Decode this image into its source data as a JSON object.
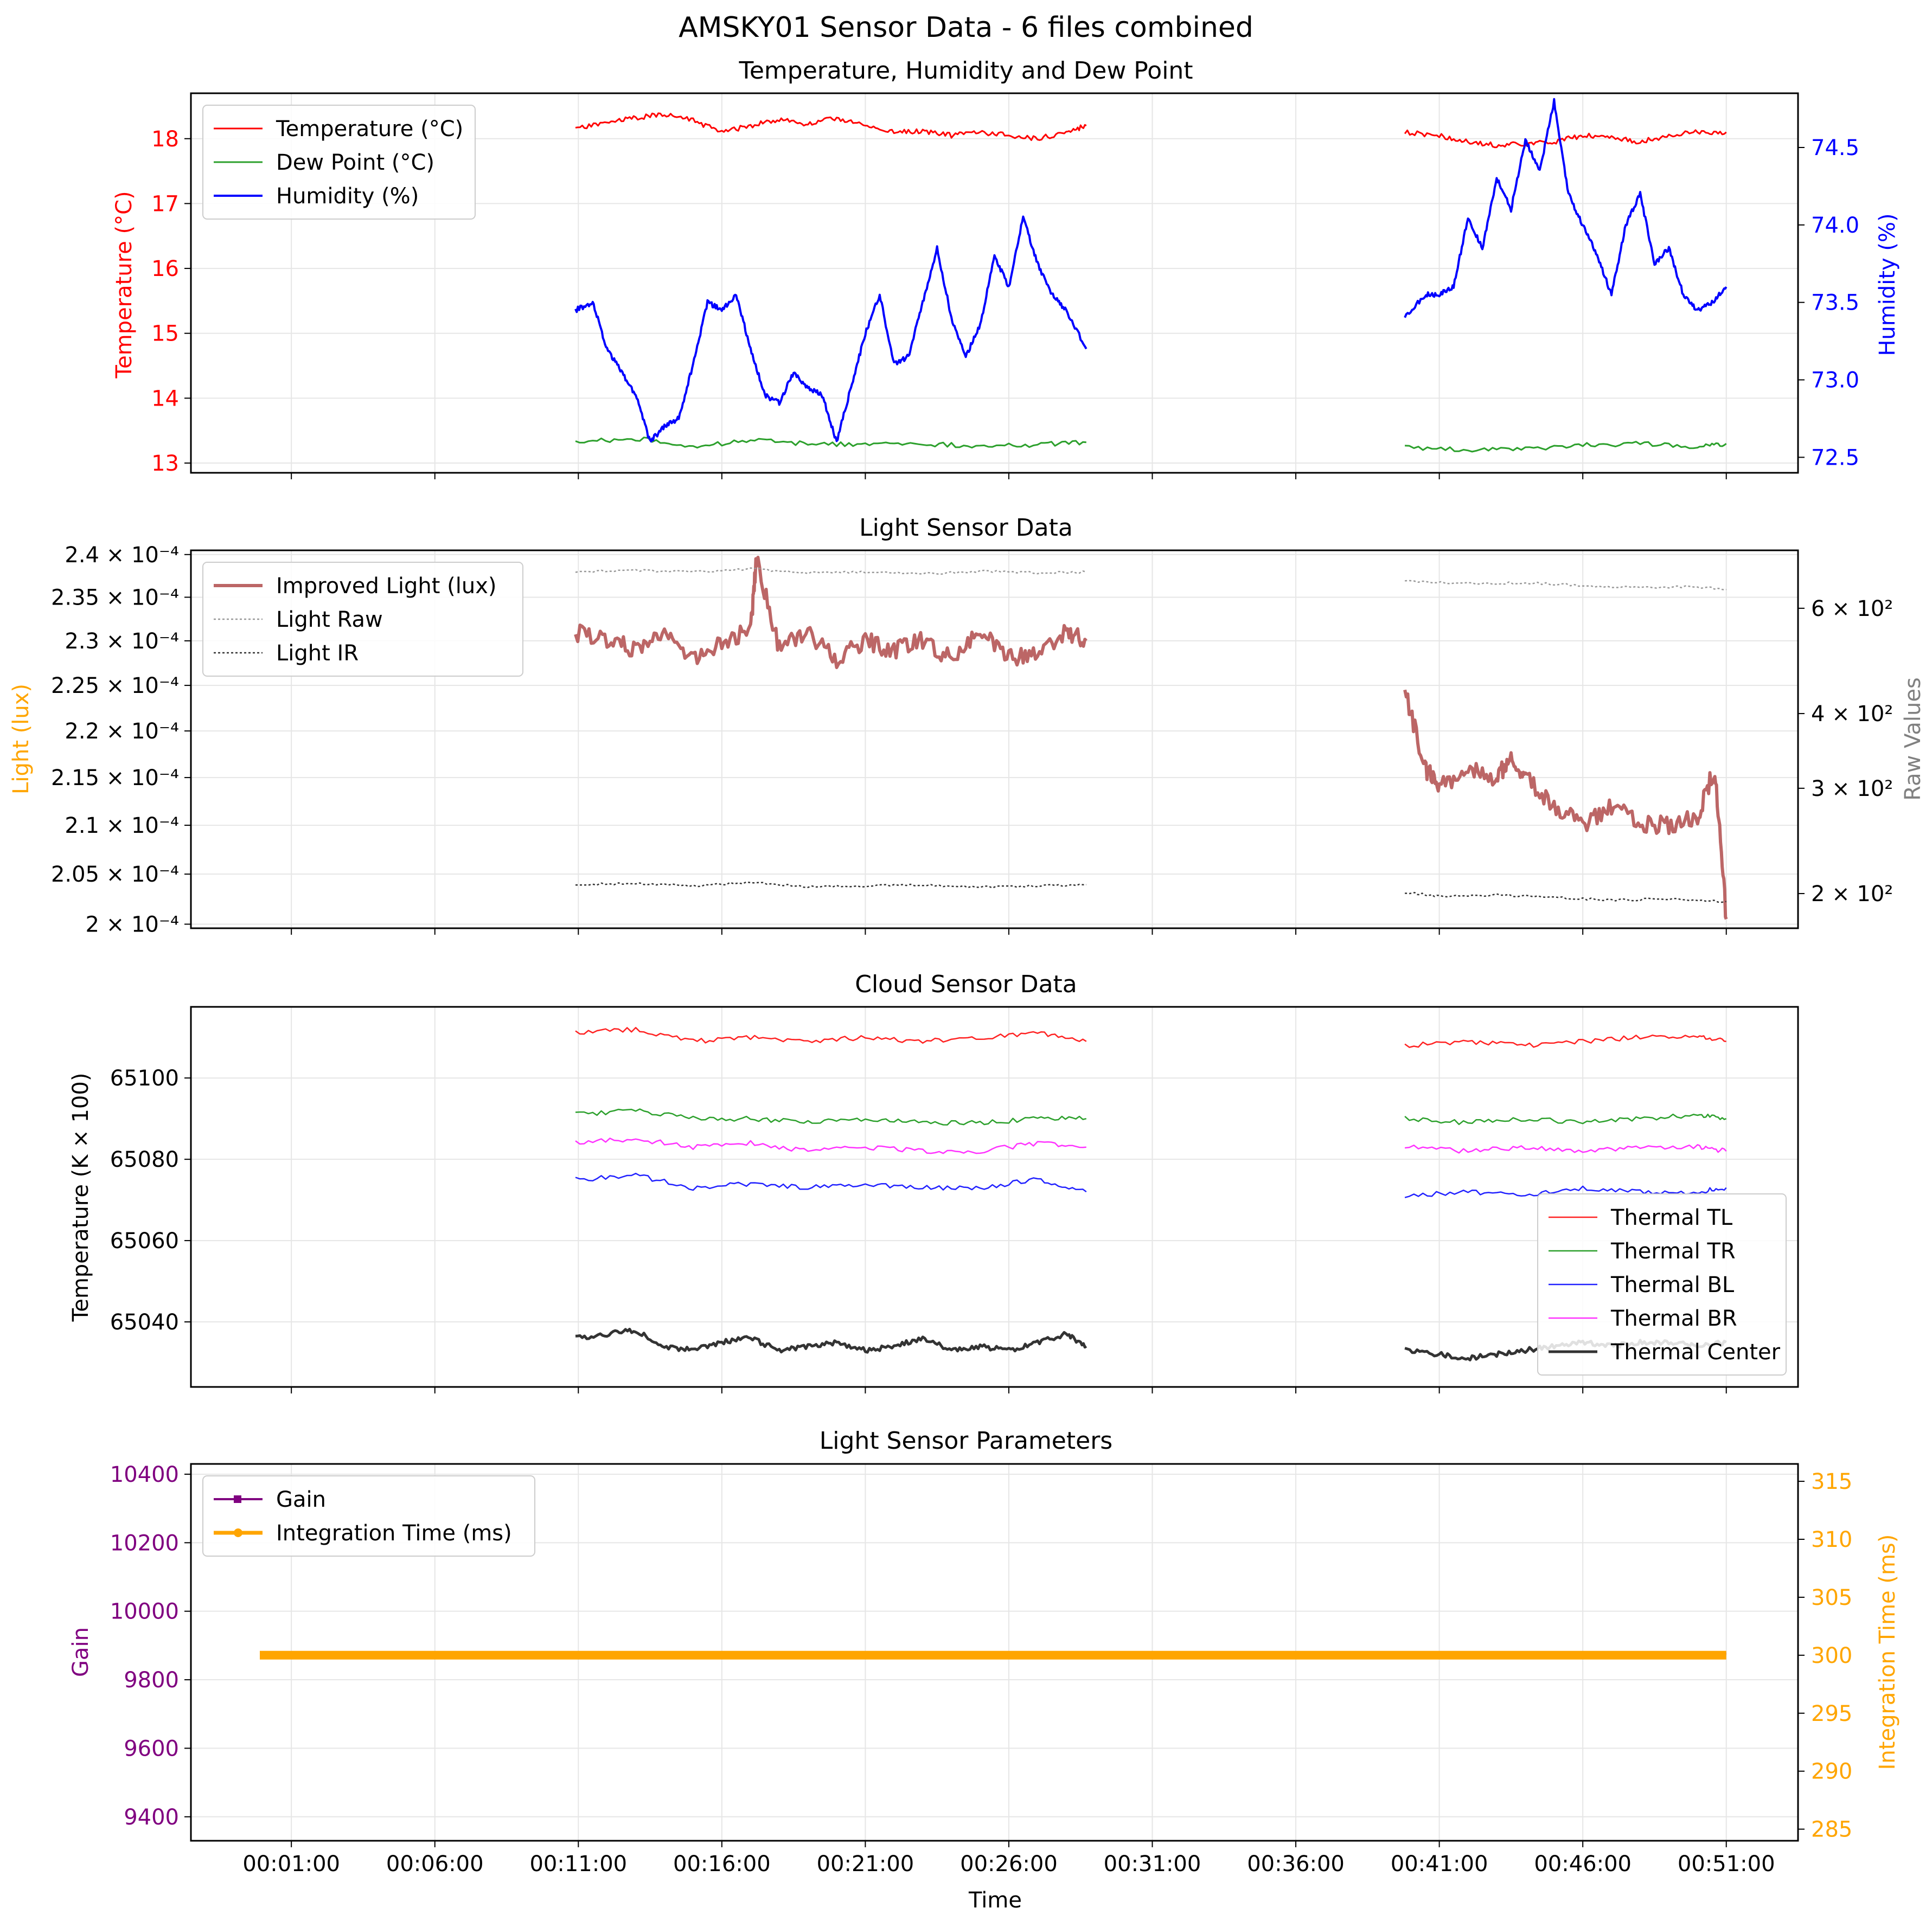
{
  "figure": {
    "title": "AMSKY01 Sensor Data - 6 files combined",
    "xlabel": "Time",
    "x_ticks": [
      "00:01:00",
      "00:06:00",
      "00:11:00",
      "00:16:00",
      "00:21:00",
      "00:26:00",
      "00:31:00",
      "00:36:00",
      "00:41:00",
      "00:46:00",
      "00:51:00"
    ],
    "x_tick_minutes": [
      1,
      6,
      11,
      16,
      21,
      26,
      31,
      36,
      41,
      46,
      51
    ],
    "xlim_minutes": [
      -2.5,
      53.5
    ],
    "segments_minutes": [
      [
        10.9,
        28.7
      ],
      [
        39.8,
        51.0
      ]
    ]
  },
  "chart_data": [
    {
      "type": "line",
      "title": "Temperature, Humidity and Dew Point",
      "ylabel": "Temperature (°C)",
      "ylabel_right": "Humidity (%)",
      "ylim": [
        12.85,
        18.7
      ],
      "ylim_right": [
        72.4,
        74.85
      ],
      "y_ticks": [
        13,
        14,
        15,
        16,
        17,
        18
      ],
      "y_tick_labels": [
        "13",
        "14",
        "15",
        "16",
        "17",
        "18"
      ],
      "y_ticks_right": [
        72.5,
        73.0,
        73.5,
        74.0,
        74.5
      ],
      "y_tick_labels_right": [
        "72.5",
        "73.0",
        "73.5",
        "74.0",
        "74.5"
      ],
      "legend": "top-left",
      "grid": true,
      "series": [
        {
          "name": "Temperature (°C)",
          "axis": "left",
          "color": "#ff0000",
          "width": 3,
          "x": [
            10.9,
            12,
            13,
            14,
            15,
            16,
            17,
            18,
            19,
            20,
            21,
            22,
            23,
            24,
            25,
            26,
            27,
            28,
            28.7
          ],
          "y": [
            18.15,
            18.25,
            18.32,
            18.38,
            18.28,
            18.1,
            18.2,
            18.3,
            18.22,
            18.32,
            18.2,
            18.1,
            18.12,
            18.05,
            18.1,
            18.05,
            18.0,
            18.1,
            18.2
          ],
          "x2": [
            39.8,
            41,
            42,
            43,
            44,
            45,
            46,
            47,
            48,
            49,
            50,
            51
          ],
          "y2": [
            18.1,
            18.05,
            17.95,
            17.9,
            17.92,
            17.95,
            18.05,
            18.02,
            17.95,
            18.05,
            18.1,
            18.1
          ]
        },
        {
          "name": "Dew Point (°C)",
          "axis": "left",
          "color": "#2ca02c",
          "width": 3,
          "x": [
            10.9,
            13,
            15,
            17,
            19,
            21,
            23,
            25,
            27,
            28.7
          ],
          "y": [
            13.32,
            13.38,
            13.25,
            13.35,
            13.3,
            13.28,
            13.3,
            13.25,
            13.28,
            13.32
          ],
          "x2": [
            39.8,
            42,
            44,
            46,
            48,
            50,
            51
          ],
          "y2": [
            13.25,
            13.2,
            13.22,
            13.28,
            13.3,
            13.25,
            13.3
          ]
        },
        {
          "name": "Humidity (%)",
          "axis": "right",
          "color": "#0000ff",
          "width": 4,
          "x": [
            10.9,
            11.5,
            12,
            12.5,
            13,
            13.5,
            14,
            14.5,
            15,
            15.5,
            16,
            16.5,
            17,
            17.5,
            18,
            18.5,
            19,
            19.5,
            20,
            20.5,
            21,
            21.5,
            22,
            22.5,
            23,
            23.5,
            24,
            24.5,
            25,
            25.5,
            26,
            26.5,
            27,
            27.5,
            28,
            28.7
          ],
          "y": [
            73.45,
            73.5,
            73.2,
            73.05,
            72.9,
            72.6,
            72.7,
            72.75,
            73.1,
            73.5,
            73.45,
            73.55,
            73.2,
            72.9,
            72.85,
            73.05,
            72.95,
            72.9,
            72.6,
            72.95,
            73.3,
            73.55,
            73.1,
            73.15,
            73.5,
            73.85,
            73.4,
            73.15,
            73.35,
            73.8,
            73.6,
            74.05,
            73.75,
            73.55,
            73.45,
            73.2
          ],
          "x2": [
            39.8,
            40.5,
            41,
            41.5,
            42,
            42.5,
            43,
            43.5,
            44,
            44.5,
            45,
            45.5,
            46,
            46.5,
            47,
            47.5,
            48,
            48.5,
            49,
            49.5,
            50,
            50.5,
            51
          ],
          "y2": [
            73.4,
            73.55,
            73.55,
            73.6,
            74.05,
            73.85,
            74.3,
            74.1,
            74.55,
            74.35,
            74.8,
            74.2,
            74.0,
            73.8,
            73.55,
            74.0,
            74.2,
            73.75,
            73.85,
            73.55,
            73.45,
            73.5,
            73.6
          ]
        }
      ]
    },
    {
      "type": "line",
      "title": "Light Sensor Data",
      "ylabel": "Light (lux)",
      "ylabel_right": "Raw Values",
      "y_scale": "log",
      "ylim": [
        0.0001996,
        0.0002405
      ],
      "ylim_right": [
        175,
        750
      ],
      "y_ticks": [
        0.0002,
        0.000205,
        0.00021,
        0.000215,
        0.00022,
        0.000225,
        0.00023,
        0.000235,
        0.00024
      ],
      "y_tick_labels": [
        "2 × 10⁻⁴",
        "2.05 × 10⁻⁴",
        "2.1 × 10⁻⁴",
        "2.15 × 10⁻⁴",
        "2.2 × 10⁻⁴",
        "2.25 × 10⁻⁴",
        "2.3 × 10⁻⁴",
        "2.35 × 10⁻⁴",
        "2.4 × 10⁻⁴"
      ],
      "y_ticks_right": [
        200,
        300,
        400,
        600
      ],
      "y_tick_labels_right": [
        "2 × 10²",
        "3 × 10²",
        "4 × 10²",
        "6 × 10²"
      ],
      "legend": "top-left",
      "grid": true,
      "series": [
        {
          "name": "Improved Light (lux)",
          "axis": "left",
          "color": "#bc6666",
          "width": 6,
          "x": [
            10.9,
            12,
            13,
            14,
            15,
            16,
            17,
            17.2,
            18,
            19,
            20,
            21,
            22,
            23,
            24,
            25,
            26,
            27,
            28,
            28.7
          ],
          "y": [
            0.000231,
            0.00023,
            0.000229,
            0.000231,
            0.000228,
            0.00023,
            0.000231,
            0.0002395,
            0.000229,
            0.000231,
            0.000228,
            0.00023,
            0.000229,
            0.00023,
            0.000228,
            0.000231,
            0.000228,
            0.000229,
            0.000231,
            0.00023
          ],
          "x2": [
            39.8,
            40.5,
            41,
            42,
            43,
            43.5,
            44,
            45,
            46,
            47,
            48,
            49,
            50,
            50.6,
            51
          ],
          "y2": [
            0.0002245,
            0.000216,
            0.000214,
            0.000216,
            0.000215,
            0.000217,
            0.000215,
            0.000212,
            0.00021,
            0.000212,
            0.00021,
            0.00021,
            0.000211,
            0.000216,
            0.0002005
          ]
        },
        {
          "name": "Light Raw",
          "axis": "right",
          "color": "#999999",
          "width": 2.5,
          "dash": "4,4",
          "x": [
            10.9,
            13,
            15,
            17,
            19,
            21,
            23,
            25,
            27,
            28.7
          ],
          "y": [
            690,
            695,
            690,
            698,
            688,
            690,
            685,
            692,
            688,
            690
          ],
          "x2": [
            39.8,
            42,
            44,
            46,
            48,
            50,
            51
          ],
          "y2": [
            665,
            660,
            662,
            655,
            650,
            652,
            645
          ]
        },
        {
          "name": "Light IR",
          "axis": "right",
          "color": "#333333",
          "width": 2.5,
          "dash": "4,4",
          "x": [
            10.9,
            13,
            15,
            17,
            19,
            21,
            23,
            25,
            27,
            28.7
          ],
          "y": [
            207,
            208,
            206,
            209,
            205,
            206,
            207,
            205,
            206,
            207
          ],
          "x2": [
            39.8,
            41,
            43,
            45,
            47,
            49,
            51
          ],
          "y2": [
            201,
            198,
            199,
            197,
            195,
            196,
            194
          ]
        }
      ]
    },
    {
      "type": "line",
      "title": "Cloud Sensor Data",
      "ylabel": "Temperature (K × 100)",
      "ylim": [
        65024,
        65117.5
      ],
      "y_ticks": [
        65040,
        65060,
        65080,
        65100
      ],
      "y_tick_labels": [
        "65040",
        "65060",
        "65080",
        "65100"
      ],
      "legend": "bottom-right",
      "grid": true,
      "series": [
        {
          "name": "Thermal TL",
          "axis": "left",
          "color": "#ff2222",
          "width": 2.5,
          "x": [
            10.9,
            13,
            15,
            17,
            19,
            21,
            23,
            25,
            27,
            28.7
          ],
          "y": [
            65111,
            65112,
            65109,
            65110,
            65109,
            65110,
            65109,
            65110,
            65111,
            65109
          ],
          "x2": [
            39.8,
            42,
            44,
            46,
            48,
            50,
            51
          ],
          "y2": [
            65108,
            65109,
            65108,
            65109,
            65110,
            65110,
            65109
          ]
        },
        {
          "name": "Thermal TR",
          "axis": "left",
          "color": "#2ca02c",
          "width": 2.5,
          "x": [
            10.9,
            13,
            15,
            17,
            19,
            21,
            23,
            25,
            27,
            28.7
          ],
          "y": [
            65091,
            65092,
            65090,
            65090,
            65089,
            65090,
            65089,
            65089,
            65090,
            65090
          ],
          "x2": [
            39.8,
            42,
            44,
            46,
            48,
            50,
            51
          ],
          "y2": [
            65090,
            65089,
            65090,
            65089,
            65090,
            65091,
            65090
          ]
        },
        {
          "name": "Thermal BL",
          "axis": "left",
          "color": "#2222ff",
          "width": 2.5,
          "x": [
            10.9,
            13,
            15,
            17,
            19,
            21,
            23,
            25,
            27,
            28.7
          ],
          "y": [
            65075,
            65076,
            65073,
            65074,
            65073,
            65074,
            65073,
            65073,
            65075,
            65072
          ],
          "x2": [
            39.8,
            42,
            44,
            46,
            48,
            50,
            51
          ],
          "y2": [
            65071,
            65072,
            65071,
            65073,
            65072,
            65072,
            65073
          ]
        },
        {
          "name": "Thermal BR",
          "axis": "left",
          "color": "#ff33ff",
          "width": 2.5,
          "x": [
            10.9,
            13,
            15,
            17,
            19,
            21,
            23,
            25,
            27,
            28.7
          ],
          "y": [
            65084,
            65085,
            65083,
            65084,
            65082,
            65083,
            65082,
            65082,
            65084,
            65083
          ],
          "x2": [
            39.8,
            42,
            44,
            46,
            48,
            50,
            51
          ],
          "y2": [
            65083,
            65082,
            65083,
            65082,
            65083,
            65083,
            65082
          ]
        },
        {
          "name": "Thermal Center",
          "axis": "left",
          "color": "#333333",
          "width": 5,
          "x": [
            10.9,
            12,
            13,
            14,
            15,
            16,
            17,
            18,
            19,
            20,
            21,
            22,
            23,
            24,
            25,
            26,
            27,
            28,
            28.7
          ],
          "y": [
            65036,
            65037,
            65038,
            65034,
            65033,
            65035,
            65036,
            65033,
            65034,
            65035,
            65033,
            65034,
            65036,
            65033,
            65034,
            65033,
            65035,
            65037,
            65034
          ],
          "x2": [
            39.8,
            41,
            42,
            43,
            44,
            45,
            46,
            47,
            48,
            49,
            50,
            51
          ],
          "y2": [
            65033,
            65032,
            65031,
            65032,
            65033,
            65034,
            65035,
            65034,
            65035,
            65035,
            65034,
            65035
          ]
        }
      ]
    },
    {
      "type": "line",
      "title": "Light Sensor Parameters",
      "ylabel": "Gain",
      "ylabel_right": "Integration Time (ms)",
      "ylim": [
        9330,
        10430
      ],
      "ylim_right": [
        284,
        316.5
      ],
      "y_ticks": [
        9400,
        9600,
        9800,
        10000,
        10200,
        10400
      ],
      "y_tick_labels": [
        "9400",
        "9600",
        "9800",
        "10000",
        "10200",
        "10400"
      ],
      "y_ticks_right": [
        285,
        290,
        295,
        300,
        305,
        310,
        315
      ],
      "y_tick_labels_right": [
        "285",
        "290",
        "295",
        "300",
        "305",
        "310",
        "315"
      ],
      "legend": "top-left",
      "grid": true,
      "series": [
        {
          "name": "Gain",
          "axis": "left",
          "color": "#800080",
          "width": 4,
          "marker": "square",
          "x": [
            -0.1,
            51.0
          ],
          "y": [
            9876,
            9876
          ]
        },
        {
          "name": "Integration Time (ms)",
          "axis": "right",
          "color": "#ffa500",
          "width": 16,
          "marker": "circle",
          "x": [
            -0.1,
            51.0
          ],
          "y": [
            300,
            300
          ]
        }
      ]
    }
  ],
  "colors": {
    "temp_axis": "#ff0000",
    "humidity_axis": "#0000ff",
    "light_axis": "#ffa500",
    "raw_axis": "#808080",
    "gain_axis": "#800080",
    "integration_axis": "#ffa500",
    "grid": "#e6e6e6"
  }
}
